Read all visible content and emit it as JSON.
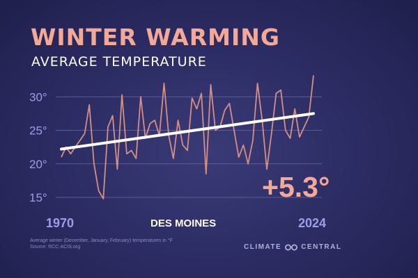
{
  "title": "WINTER WARMING",
  "subtitle": "AVERAGE TEMPERATURE",
  "location": "DES MOINES",
  "start_year_label": "1970",
  "end_year_label": "2024",
  "change_label": "+5.3°",
  "footnote_line1": "Average winter (December, January, February) temperatures in °F",
  "footnote_line2": "Source: RCC-ACIS.org",
  "brand_left": "CLIMATE",
  "brand_right": "CENTRAL",
  "colors": {
    "series": "#d68f83",
    "trend": "#ffffff",
    "accent": "#f3a996",
    "axis_text": "#9d9de8"
  },
  "chart_data": {
    "type": "line",
    "title": "WINTER WARMING",
    "subtitle": "AVERAGE TEMPERATURE",
    "xlabel": "",
    "ylabel": "",
    "x_range": [
      1970,
      2024
    ],
    "ylim": [
      14,
      33
    ],
    "y_ticks": [
      15,
      20,
      25,
      30
    ],
    "y_tick_labels": [
      "15°",
      "20°",
      "25°",
      "30°"
    ],
    "grid": true,
    "x": [
      1970,
      1971,
      1972,
      1973,
      1974,
      1975,
      1976,
      1977,
      1978,
      1979,
      1980,
      1981,
      1982,
      1983,
      1984,
      1985,
      1986,
      1987,
      1988,
      1989,
      1990,
      1991,
      1992,
      1993,
      1994,
      1995,
      1996,
      1997,
      1998,
      1999,
      2000,
      2001,
      2002,
      2003,
      2004,
      2005,
      2006,
      2007,
      2008,
      2009,
      2010,
      2011,
      2012,
      2013,
      2014,
      2015,
      2016,
      2017,
      2018,
      2019,
      2020,
      2021,
      2022,
      2023,
      2024
    ],
    "series": [
      {
        "values": [
          21,
          22.5,
          21.5,
          22.5,
          23.5,
          24.5,
          28.8,
          20,
          16,
          14.8,
          25.5,
          27.2,
          19.2,
          30.3,
          21.5,
          22,
          20.8,
          30,
          23.8,
          26,
          26.5,
          24.2,
          32,
          24.2,
          20.8,
          26.5,
          22.8,
          22,
          29.8,
          28.2,
          30.5,
          18.5,
          31.8,
          25,
          25.5,
          28,
          29,
          25,
          21,
          22.8,
          20,
          23.5,
          32,
          26.5,
          19.2,
          24.5,
          30.5,
          31,
          25,
          23.8,
          28.2,
          24,
          25.5,
          27,
          33.2
        ]
      }
    ],
    "trend": {
      "start": 22.2,
      "end": 27.5
    }
  }
}
